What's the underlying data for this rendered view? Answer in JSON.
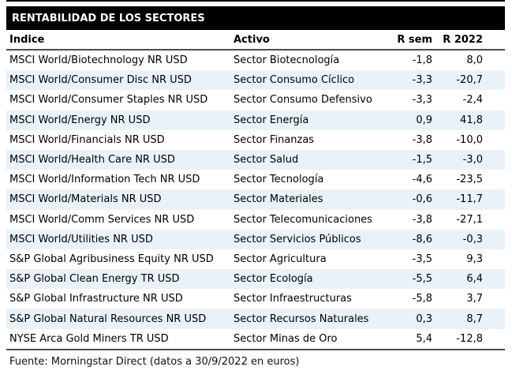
{
  "chart_data": {
    "type": "table",
    "title": "RENTABILIDAD DE LOS SECTORES",
    "columns": [
      "Índice",
      "Activo",
      "R sem",
      "R 2022"
    ],
    "rows": [
      {
        "indice": "MSCI World/Biotechnology NR USD",
        "activo": "Sector Biotecnología",
        "r_sem": "-1,8",
        "r_2022": "8,0"
      },
      {
        "indice": "MSCI World/Consumer Disc NR USD",
        "activo": "Sector Consumo Cíclico",
        "r_sem": "-3,3",
        "r_2022": "-20,7"
      },
      {
        "indice": "MSCI World/Consumer Staples NR USD",
        "activo": "Sector Consumo Defensivo",
        "r_sem": "-3,3",
        "r_2022": "-2,4"
      },
      {
        "indice": "MSCI World/Energy NR USD",
        "activo": "Sector Energía",
        "r_sem": "0,9",
        "r_2022": "41,8"
      },
      {
        "indice": "MSCI World/Financials NR USD",
        "activo": "Sector Finanzas",
        "r_sem": "-3,8",
        "r_2022": "-10,0"
      },
      {
        "indice": "MSCI World/Health Care NR USD",
        "activo": "Sector Salud",
        "r_sem": "-1,5",
        "r_2022": "-3,0"
      },
      {
        "indice": "MSCI World/Information Tech NR USD",
        "activo": "Sector Tecnología",
        "r_sem": "-4,6",
        "r_2022": "-23,5"
      },
      {
        "indice": "MSCI World/Materials NR USD",
        "activo": "Sector Materiales",
        "r_sem": "-0,6",
        "r_2022": "-11,7"
      },
      {
        "indice": "MSCI World/Comm Services NR USD",
        "activo": "Sector Telecomunicaciones",
        "r_sem": "-3,8",
        "r_2022": "-27,1"
      },
      {
        "indice": "MSCI World/Utilities NR USD",
        "activo": "Sector Servicios Públicos",
        "r_sem": "-8,6",
        "r_2022": "-0,3"
      },
      {
        "indice": "S&P Global Agribusiness Equity NR USD",
        "activo": "Sector Agricultura",
        "r_sem": "-3,5",
        "r_2022": "9,3"
      },
      {
        "indice": "S&P Global Clean Energy TR USD",
        "activo": "Sector Ecología",
        "r_sem": "-5,5",
        "r_2022": "6,4"
      },
      {
        "indice": "S&P Global Infrastructure NR USD",
        "activo": "Sector Infraestructuras",
        "r_sem": "-5,8",
        "r_2022": "3,7"
      },
      {
        "indice": "S&P Global Natural Resources NR USD",
        "activo": "Sector Recursos Naturales",
        "r_sem": "0,3",
        "r_2022": "8,7"
      },
      {
        "indice": "NYSE Arca Gold Miners TR USD",
        "activo": "Sector Minas de Oro",
        "r_sem": "5,4",
        "r_2022": "-12,8"
      }
    ],
    "source": "Fuente: Morningstar Direct (datos a 30/9/2022 en euros)",
    "colors": {
      "banner_background": "#000000",
      "banner_text": "#ffffff",
      "zebra_stripe": "#e9f2f8",
      "rule": "#4d4d4d"
    },
    "layout": {
      "zebra": true,
      "decimal_separator": ","
    }
  }
}
